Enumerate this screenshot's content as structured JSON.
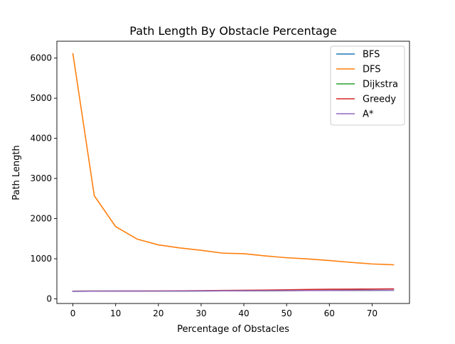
{
  "chart_data": {
    "type": "line",
    "title": "Path Length By Obstacle Percentage",
    "xlabel": "Percentage of Obstacles",
    "ylabel": "Path Length",
    "xlim": [
      -3.75,
      78.75
    ],
    "ylim": [
      -115,
      6420
    ],
    "xticks": [
      0,
      10,
      20,
      30,
      40,
      50,
      60,
      70
    ],
    "yticks": [
      0,
      1000,
      2000,
      3000,
      4000,
      5000,
      6000
    ],
    "grid": false,
    "legend_position": "top-right",
    "x": [
      0,
      5,
      10,
      15,
      20,
      25,
      30,
      35,
      40,
      45,
      50,
      55,
      60,
      65,
      70,
      75
    ],
    "series": [
      {
        "name": "BFS",
        "color": "#1f77b4",
        "values": [
          190,
          192,
          193,
          194,
          195,
          196,
          198,
          200,
          202,
          204,
          206,
          208,
          210,
          212,
          214,
          216
        ]
      },
      {
        "name": "DFS",
        "color": "#ff7f0e",
        "values": [
          6110,
          2570,
          1800,
          1490,
          1345,
          1270,
          1210,
          1140,
          1125,
          1070,
          1025,
          995,
          955,
          910,
          870,
          850
        ]
      },
      {
        "name": "Dijkstra",
        "color": "#2ca02c",
        "values": [
          190,
          192,
          193,
          194,
          195,
          196,
          198,
          200,
          202,
          204,
          206,
          208,
          210,
          212,
          214,
          216
        ]
      },
      {
        "name": "Greedy",
        "color": "#d62728",
        "values": [
          192,
          194,
          195,
          196,
          198,
          200,
          205,
          210,
          213,
          218,
          225,
          235,
          240,
          243,
          246,
          250
        ]
      },
      {
        "name": "A*",
        "color": "#9467bd",
        "values": [
          190,
          192,
          193,
          194,
          195,
          196,
          198,
          200,
          202,
          204,
          206,
          208,
          210,
          212,
          214,
          216
        ]
      }
    ]
  }
}
